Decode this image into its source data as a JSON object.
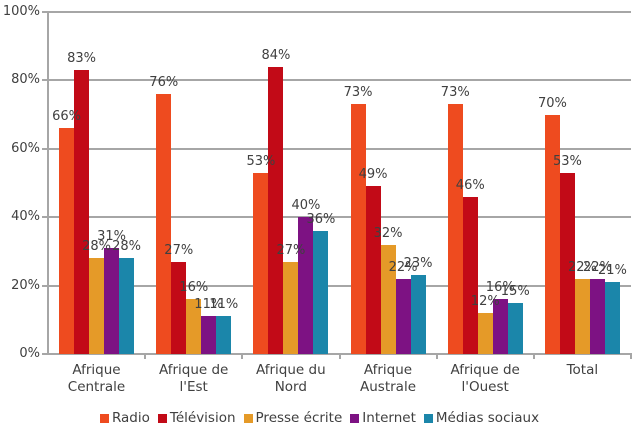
{
  "chart_data": {
    "type": "bar",
    "title": "",
    "xlabel": "",
    "ylabel": "",
    "ylim": [
      0,
      100
    ],
    "yticks": [
      "0%",
      "20%",
      "40%",
      "60%",
      "80%",
      "100%"
    ],
    "grid": true,
    "legend_position": "bottom",
    "categories": [
      "Afrique Centrale",
      "Afrique de l'Est",
      "Afrique du Nord",
      "Afrique Australe",
      "Afrique de l'Ouest",
      "Total"
    ],
    "category_lines": [
      [
        "Afrique",
        "Centrale"
      ],
      [
        "Afrique de",
        "l'Est"
      ],
      [
        "Afrique du",
        "Nord"
      ],
      [
        "Afrique",
        "Australe"
      ],
      [
        "Afrique de",
        "l'Ouest"
      ],
      [
        "Total"
      ]
    ],
    "series": [
      {
        "name": "Radio",
        "color": "#EE4B1F",
        "values": [
          66,
          76,
          53,
          73,
          73,
          70
        ]
      },
      {
        "name": "Télévision",
        "color": "#C20A17",
        "values": [
          83,
          27,
          84,
          49,
          46,
          53
        ]
      },
      {
        "name": "Presse écrite",
        "color": "#E59A28",
        "values": [
          28,
          16,
          27,
          32,
          12,
          22
        ]
      },
      {
        "name": "Internet",
        "color": "#7D1283",
        "values": [
          31,
          11,
          40,
          22,
          16,
          22
        ]
      },
      {
        "name": "Médias sociaux",
        "color": "#1B86AA",
        "values": [
          28,
          11,
          36,
          23,
          15,
          21
        ]
      }
    ],
    "value_label_suffix": "%"
  }
}
